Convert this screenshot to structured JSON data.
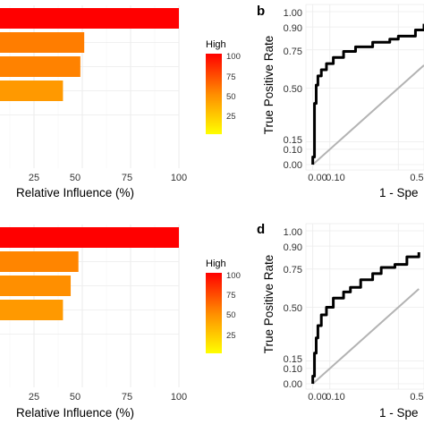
{
  "colors": {
    "high": "#ff0000",
    "mid": "#ff8c00",
    "low": "#ffff00",
    "roc_curve": "#000000",
    "diagonal": "#b3b3b3",
    "grid": "#ebebeb"
  },
  "chart_data": [
    {
      "type": "bar",
      "orientation": "horizontal",
      "categories": [
        "",
        "",
        "",
        "",
        ""
      ],
      "values": [
        100,
        51,
        49,
        40,
        0
      ],
      "xlabel": "Relative Influence (%)",
      "xlim": [
        0,
        100
      ],
      "xticks": [
        "25",
        "50",
        "75",
        "100"
      ],
      "legend": {
        "title": "High",
        "ticks": [
          "100",
          "75",
          "50",
          "25"
        ]
      }
    },
    {
      "type": "line",
      "label": "b",
      "ylabel": "True Positive Rate",
      "xlabel": "1 - Spe",
      "yticks": [
        "1.00",
        "0.90",
        "0.75",
        "0.50",
        "0.15",
        "0.10",
        "0.00"
      ],
      "xticks": [
        "0.00",
        "0.10",
        "0.5"
      ],
      "series": [
        {
          "x": [
            0,
            0,
            0.01,
            0.01,
            0.02,
            0.02,
            0.03,
            0.05,
            0.08,
            0.12,
            0.18,
            0.25,
            0.35,
            0.45,
            0.5,
            0.6,
            0.65
          ],
          "y": [
            0,
            0.05,
            0.08,
            0.4,
            0.45,
            0.52,
            0.58,
            0.62,
            0.66,
            0.7,
            0.74,
            0.77,
            0.8,
            0.82,
            0.84,
            0.88,
            0.92
          ]
        },
        {
          "x": [
            0,
            0.65
          ],
          "y": [
            0,
            0.65
          ]
        }
      ]
    },
    {
      "type": "bar",
      "orientation": "horizontal",
      "categories": [
        "",
        "",
        "",
        "",
        ""
      ],
      "values": [
        100,
        48,
        44,
        40,
        0
      ],
      "xlabel": "Relative Influence (%)",
      "xlim": [
        0,
        100
      ],
      "xticks": [
        "25",
        "50",
        "75",
        "100"
      ],
      "legend": {
        "title": "High",
        "ticks": [
          "100",
          "75",
          "50",
          "25"
        ]
      }
    },
    {
      "type": "line",
      "label": "d",
      "ylabel": "True Positive Rate",
      "xlabel": "1 - Spe",
      "yticks": [
        "1.00",
        "0.90",
        "0.75",
        "0.50",
        "0.15",
        "0.10",
        "0.00"
      ],
      "xticks": [
        "0.00",
        "0.10",
        "0.5"
      ],
      "series": [
        {
          "x": [
            0,
            0,
            0.01,
            0.01,
            0.02,
            0.03,
            0.05,
            0.08,
            0.12,
            0.18,
            0.22,
            0.28,
            0.35,
            0.4,
            0.48,
            0.55,
            0.62
          ],
          "y": [
            0,
            0.05,
            0.1,
            0.2,
            0.3,
            0.38,
            0.45,
            0.5,
            0.56,
            0.6,
            0.63,
            0.68,
            0.72,
            0.76,
            0.78,
            0.83,
            0.86
          ]
        },
        {
          "x": [
            0,
            0.62
          ],
          "y": [
            0,
            0.62
          ]
        }
      ]
    }
  ]
}
